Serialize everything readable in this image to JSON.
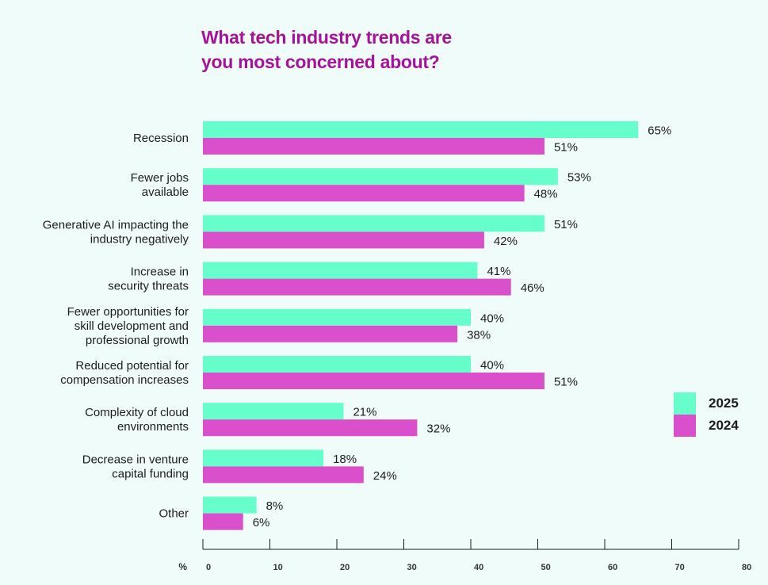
{
  "title_line1": "What tech industry trends are",
  "title_line2": "you most concerned about?",
  "colors": {
    "series_2025": "#66ffcc",
    "series_2024": "#d94fcc",
    "title": "#a5129b",
    "background": "#f0fcf9"
  },
  "legend": [
    {
      "label": "2025",
      "color": "#66ffcc"
    },
    {
      "label": "2024",
      "color": "#d94fcc"
    }
  ],
  "chart_data": {
    "type": "bar",
    "orientation": "horizontal",
    "title": "What tech industry trends are you most concerned about?",
    "categories": [
      [
        "Recession"
      ],
      [
        "Fewer jobs",
        "available"
      ],
      [
        "Generative AI impacting the",
        "industry negatively"
      ],
      [
        "Increase in",
        "security threats"
      ],
      [
        "Fewer opportunities for",
        "skill development and",
        "professional growth"
      ],
      [
        "Reduced potential for",
        "compensation increases"
      ],
      [
        "Complexity of cloud",
        "environments"
      ],
      [
        "Decrease in venture",
        "capital funding"
      ],
      [
        "Other"
      ]
    ],
    "series": [
      {
        "name": "2025",
        "values": [
          65,
          53,
          51,
          41,
          40,
          40,
          21,
          18,
          8
        ]
      },
      {
        "name": "2024",
        "values": [
          51,
          48,
          42,
          46,
          38,
          51,
          32,
          24,
          6
        ]
      }
    ],
    "value_suffix": "%",
    "xlabel": "%",
    "xlim": [
      0,
      80
    ],
    "xticks": [
      0,
      10,
      20,
      30,
      40,
      50,
      60,
      70,
      80
    ],
    "legend_position": "right"
  }
}
